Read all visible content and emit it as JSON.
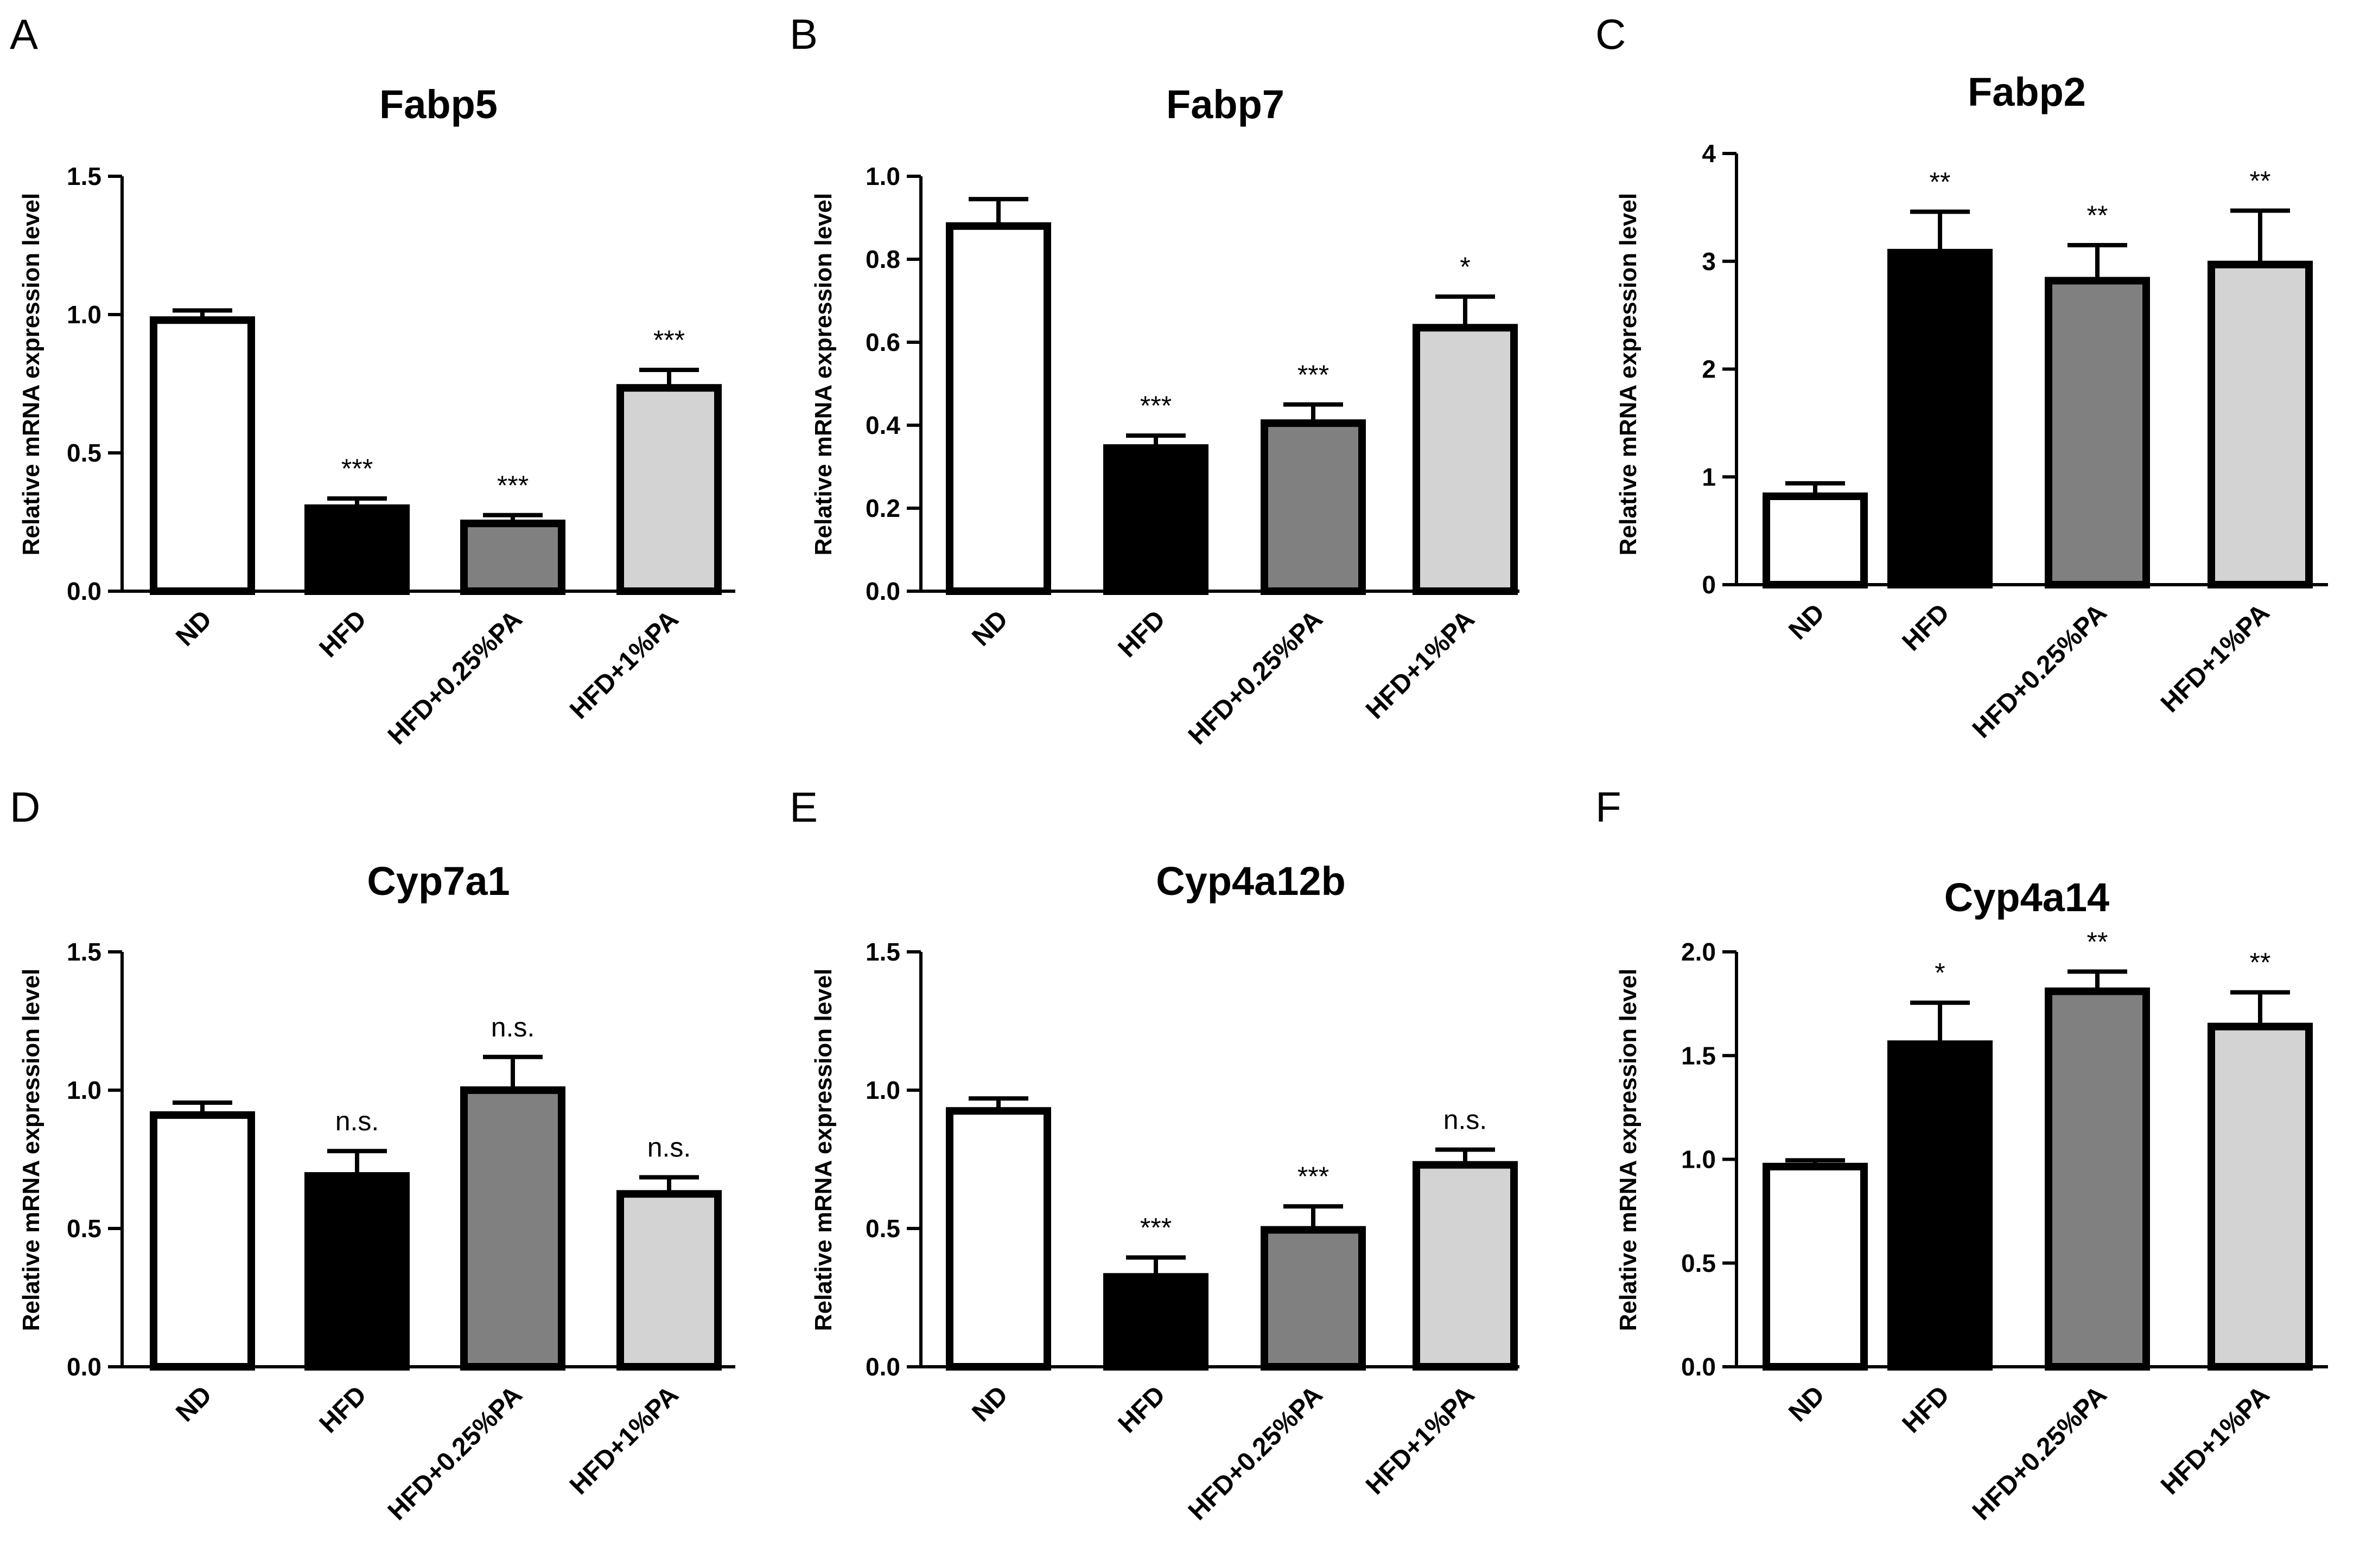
{
  "colors": {
    "ND": "#ffffff",
    "HFD": "#000000",
    "HFD+0.25%PA": "#808080",
    "HFD+1%PA": "#d3d3d3",
    "stroke": "#000000"
  },
  "chart_data": [
    {
      "panel": "A",
      "type": "bar",
      "title": "Fabp5",
      "ylabel": "Relative mRNA expression level",
      "ylim": [
        0,
        1.5
      ],
      "yticks": [
        "0.0",
        "0.5",
        "1.0",
        "1.5"
      ],
      "categories": [
        "ND",
        "HFD",
        "HFD+0.25%PA",
        "HFD+1%PA"
      ],
      "values": [
        0.98,
        0.3,
        0.245,
        0.735
      ],
      "errors": [
        0.035,
        0.035,
        0.03,
        0.065
      ],
      "annotations": [
        "",
        "***",
        "***",
        "***"
      ]
    },
    {
      "panel": "B",
      "type": "bar",
      "title": "Fabp7",
      "ylabel": "Relative mRNA expression level",
      "ylim": [
        0,
        1.0
      ],
      "yticks": [
        "0.0",
        "0.2",
        "0.4",
        "0.6",
        "0.8",
        "1.0"
      ],
      "categories": [
        "ND",
        "HFD",
        "HFD+0.25%PA",
        "HFD+1%PA"
      ],
      "values": [
        0.88,
        0.345,
        0.405,
        0.635
      ],
      "errors": [
        0.065,
        0.03,
        0.045,
        0.075
      ],
      "annotations": [
        "",
        "***",
        "***",
        "*"
      ]
    },
    {
      "panel": "C",
      "type": "bar",
      "title": "Fabp2",
      "ylabel": "Relative mRNA expression level",
      "ylim": [
        0,
        4
      ],
      "yticks": [
        "0",
        "1",
        "2",
        "3",
        "4"
      ],
      "categories": [
        "ND",
        "HFD",
        "HFD+0.25%PA",
        "HFD+1%PA"
      ],
      "values": [
        0.82,
        3.08,
        2.82,
        2.97
      ],
      "errors": [
        0.12,
        0.38,
        0.33,
        0.5
      ],
      "annotations": [
        "",
        "**",
        "**",
        "**"
      ]
    },
    {
      "panel": "D",
      "type": "bar",
      "title": "Cyp7a1",
      "ylabel": "Relative mRNA expression level",
      "ylim": [
        0,
        1.5
      ],
      "yticks": [
        "0.0",
        "0.5",
        "1.0",
        "1.5"
      ],
      "categories": [
        "ND",
        "HFD",
        "HFD+0.25%PA",
        "HFD+1%PA"
      ],
      "values": [
        0.91,
        0.69,
        1.0,
        0.625
      ],
      "errors": [
        0.045,
        0.09,
        0.12,
        0.06
      ],
      "annotations": [
        "",
        "n.s.",
        "n.s.",
        "n.s."
      ]
    },
    {
      "panel": "E",
      "type": "bar",
      "title": "Cyp4a12b",
      "ylabel": "Relative mRNA expression level",
      "ylim": [
        0,
        1.5
      ],
      "yticks": [
        "0.0",
        "0.5",
        "1.0",
        "1.5"
      ],
      "categories": [
        "ND",
        "HFD",
        "HFD+0.25%PA",
        "HFD+1%PA"
      ],
      "values": [
        0.925,
        0.325,
        0.495,
        0.73
      ],
      "errors": [
        0.045,
        0.07,
        0.085,
        0.055
      ],
      "annotations": [
        "",
        "***",
        "***",
        "n.s."
      ]
    },
    {
      "panel": "F",
      "type": "bar",
      "title": "Cyp4a14",
      "ylabel": "Relative mRNA expression level",
      "ylim": [
        0,
        2.0
      ],
      "yticks": [
        "0.0",
        "0.5",
        "1.0",
        "1.5",
        "2.0"
      ],
      "categories": [
        "ND",
        "HFD",
        "HFD+0.25%PA",
        "HFD+1%PA"
      ],
      "values": [
        0.965,
        1.555,
        1.81,
        1.64
      ],
      "errors": [
        0.03,
        0.2,
        0.095,
        0.165
      ],
      "annotations": [
        "",
        "*",
        "**",
        "**"
      ]
    }
  ]
}
